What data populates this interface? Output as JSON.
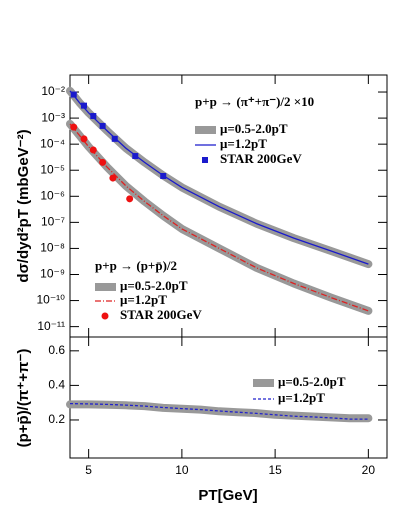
{
  "chart_data": [
    {
      "type": "line",
      "log_y": true,
      "ylabel": "dσ/dyd²pT (mbGeV⁻²)",
      "xlim": [
        4,
        21
      ],
      "ylim": [
        4e-12,
        0.045
      ],
      "yticks": [
        {
          "value": 0.01,
          "label": "10⁻²"
        },
        {
          "value": 0.001,
          "label": "10⁻³"
        },
        {
          "value": 0.0001,
          "label": "10⁻⁴"
        },
        {
          "value": 1e-05,
          "label": "10⁻⁵"
        },
        {
          "value": 1e-06,
          "label": "10⁻⁶"
        },
        {
          "value": 1e-07,
          "label": "10⁻⁷"
        },
        {
          "value": 1e-08,
          "label": "10⁻⁸"
        },
        {
          "value": 1e-09,
          "label": "10⁻⁹"
        },
        {
          "value": 1e-10,
          "label": "10⁻¹⁰"
        },
        {
          "value": 1e-11,
          "label": "10⁻¹¹"
        }
      ],
      "legend_titles": [
        "p+p → (π⁺+π⁻)/2 ×10",
        "p+p → (p+p̄)/2"
      ],
      "series": [
        {
          "name": "μ=0.5-2.0pT",
          "style": "band",
          "color": "#999999",
          "x": [
            4,
            4.5,
            5,
            6,
            7,
            8,
            9,
            10,
            12,
            14,
            16,
            18,
            20
          ],
          "values": [
            0.011,
            0.004,
            0.0016,
            0.00032,
            7e-05,
            2e-05,
            6.3e-06,
            2.2e-06,
            4e-07,
            9e-08,
            2.5e-08,
            8e-09,
            2.5e-09
          ]
        },
        {
          "name": "μ=1.2pT",
          "style": "line",
          "color": "#1a1acc",
          "x": [
            4,
            4.5,
            5,
            6,
            7,
            8,
            9,
            10,
            12,
            14,
            16,
            18,
            20
          ],
          "values": [
            0.011,
            0.004,
            0.0016,
            0.00032,
            7e-05,
            2e-05,
            6.3e-06,
            2.2e-06,
            4e-07,
            9e-08,
            2.5e-08,
            8e-09,
            2.5e-09
          ]
        },
        {
          "name": "STAR 200GeV",
          "style": "markers",
          "marker": "square",
          "color": "#1a1acc",
          "x": [
            4.2,
            4.75,
            5.25,
            5.75,
            6.4,
            7.5,
            9.0
          ],
          "values": [
            0.008,
            0.003,
            0.0012,
            0.0005,
            0.00016,
            3.5e-05,
            6e-06
          ]
        },
        {
          "name": "μ=0.5-2.0pT",
          "style": "band",
          "color": "#999999",
          "x": [
            4,
            4.5,
            5,
            6,
            7,
            8,
            9,
            10,
            12,
            14,
            16,
            18,
            20
          ],
          "values": [
            0.0006,
            0.00022,
            8e-05,
            1.3e-05,
            2.5e-06,
            6.3e-07,
            1.8e-07,
            5.6e-08,
            1e-08,
            1.8e-09,
            4.5e-10,
            1.3e-10,
            4e-11
          ]
        },
        {
          "name": "μ=1.2pT",
          "style": "dashdot",
          "color": "#dd2222",
          "x": [
            4,
            4.5,
            5,
            6,
            7,
            8,
            9,
            10,
            12,
            14,
            16,
            18,
            20
          ],
          "values": [
            0.0006,
            0.00022,
            8e-05,
            1.3e-05,
            2.5e-06,
            6.3e-07,
            1.8e-07,
            5.6e-08,
            1e-08,
            1.8e-09,
            4.5e-10,
            1.3e-10,
            4e-11
          ]
        },
        {
          "name": "STAR 200GeV",
          "style": "markers",
          "marker": "circle",
          "color": "#ee1111",
          "x": [
            4.2,
            4.75,
            5.25,
            5.75,
            6.3,
            7.2
          ],
          "values": [
            0.00045,
            0.00016,
            6e-05,
            2e-05,
            5e-06,
            8e-07
          ]
        }
      ]
    },
    {
      "type": "line",
      "ylabel": "(p+p̄)/(π⁺+π⁻)",
      "xlabel": "PT[GeV]",
      "xlim": [
        4,
        21
      ],
      "ylim": [
        -0.02,
        0.68
      ],
      "xticks": [
        5,
        10,
        15,
        20
      ],
      "yticks": [
        0.2,
        0.4,
        0.6
      ],
      "series": [
        {
          "name": "μ=0.5-2.0pT",
          "style": "band",
          "color": "#999999",
          "x": [
            4,
            5,
            6,
            7,
            8,
            9,
            10,
            11,
            12,
            13,
            14,
            15,
            16,
            17,
            18,
            19,
            20
          ],
          "values": [
            0.29,
            0.29,
            0.288,
            0.285,
            0.28,
            0.27,
            0.265,
            0.26,
            0.25,
            0.245,
            0.24,
            0.23,
            0.225,
            0.22,
            0.215,
            0.21,
            0.21
          ]
        },
        {
          "name": "μ=1.2pT",
          "style": "dashed",
          "color": "#2222cc",
          "x": [
            4,
            5,
            6,
            7,
            8,
            9,
            10,
            11,
            12,
            13,
            14,
            15,
            16,
            17,
            18,
            19,
            20
          ],
          "values": [
            0.295,
            0.293,
            0.29,
            0.286,
            0.28,
            0.272,
            0.266,
            0.26,
            0.252,
            0.245,
            0.238,
            0.23,
            0.222,
            0.218,
            0.212,
            0.205,
            0.205
          ]
        }
      ]
    }
  ]
}
